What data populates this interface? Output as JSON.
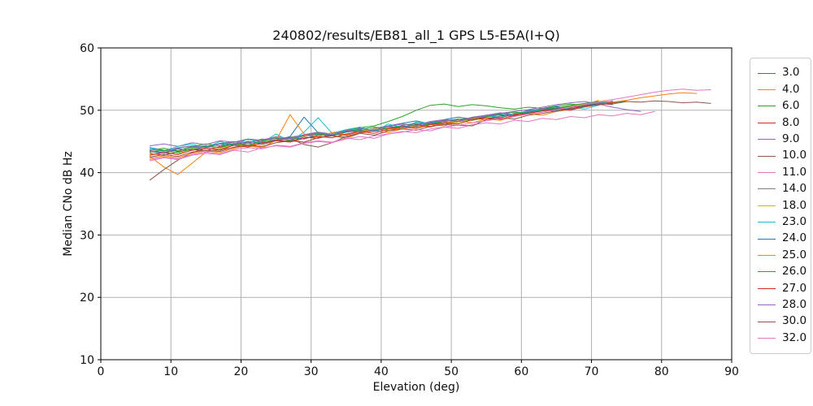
{
  "chart_data": {
    "type": "line",
    "title": "240802/results/EB81_all_1 GPS L5-E5A(I+Q)",
    "xlabel": "Elevation (deg)",
    "ylabel": "Median CNo dB Hz",
    "xlim": [
      0,
      90
    ],
    "ylim": [
      10,
      60
    ],
    "xticks": [
      0,
      10,
      20,
      30,
      40,
      50,
      60,
      70,
      80,
      90
    ],
    "yticks": [
      10,
      20,
      30,
      40,
      50,
      60
    ],
    "grid": true,
    "grid_color": "#b0b0b0",
    "spine_color": "#000000",
    "text_color": "#111111",
    "legend": {
      "position": "outside-right",
      "border_color": "#cccccc"
    },
    "series": [
      {
        "name": "3.0",
        "color": "#1f77b4",
        "x_start": 7,
        "x_step": 2,
        "values": [
          44.0,
          43.6,
          43.5,
          44.1,
          44.3,
          44.0,
          44.6,
          45.0,
          44.7,
          45.2,
          45.8,
          48.9,
          46.4,
          46.0,
          46.5,
          47.1,
          46.8,
          47.5,
          47.9,
          48.3,
          47.8,
          48.5,
          48.9,
          48.6,
          49.2,
          49.5,
          49.3,
          50.0,
          50.2,
          50.6,
          50.3,
          50.9,
          51.2,
          51.4
        ]
      },
      {
        "name": "4.0",
        "color": "#ff7f0e",
        "x_start": 7,
        "x_step": 2,
        "values": [
          42.6,
          40.9,
          39.7,
          41.5,
          43.3,
          43.7,
          44.0,
          44.4,
          44.1,
          44.8,
          45.2,
          44.9,
          45.6,
          45.9,
          45.5,
          46.3,
          46.7,
          46.4,
          47.0,
          47.4,
          47.7,
          47.5,
          48.2,
          48.4,
          48.8,
          48.5,
          49.2,
          49.6,
          49.9,
          50.1,
          50.5,
          50.8,
          51.6
        ]
      },
      {
        "name": "6.0",
        "color": "#2ca02c",
        "x_start": 7,
        "x_step": 2,
        "values": [
          43.6,
          43.9,
          43.5,
          44.2,
          44.6,
          44.3,
          44.9,
          45.3,
          45.0,
          45.6,
          45.4,
          46.0,
          46.4,
          46.1,
          46.8,
          47.2,
          47.5,
          48.2,
          49.0,
          50.0,
          50.8,
          51.0,
          50.6,
          50.9,
          50.7,
          50.4,
          50.2,
          50.5,
          50.3,
          50.7,
          51.0,
          50.8,
          51.2,
          51.0,
          51.4
        ]
      },
      {
        "name": "8.0",
        "color": "#d62728",
        "x_start": 7,
        "x_step": 2,
        "values": [
          43.1,
          42.8,
          43.4,
          43.7,
          43.5,
          44.2,
          44.5,
          44.3,
          44.9,
          45.2,
          45.0,
          45.7,
          45.5,
          46.2,
          46.0,
          46.6,
          47.0,
          46.7,
          47.3,
          47.7,
          47.4,
          48.0,
          48.3,
          48.7,
          48.5,
          49.1,
          49.4,
          49.7,
          50.0,
          49.8,
          50.4,
          50.7,
          51.0,
          51.3
        ]
      },
      {
        "name": "9.0",
        "color": "#9467bd",
        "x_start": 7,
        "x_step": 2,
        "values": [
          44.3,
          44.6,
          44.2,
          44.8,
          44.5,
          45.1,
          44.9,
          45.4,
          45.2,
          45.8,
          45.5,
          46.1,
          46.5,
          46.2,
          46.8,
          46.5,
          47.1,
          47.5,
          47.8,
          47.6,
          48.2,
          48.5,
          48.3,
          48.9,
          49.2,
          49.6,
          49.3,
          49.9,
          50.3,
          50.1,
          50.7,
          51.0,
          50.8,
          51.5
        ]
      },
      {
        "name": "10.0",
        "color": "#8c564b",
        "x_start": 7,
        "x_step": 2,
        "values": [
          38.8,
          40.5,
          42.0,
          43.2,
          43.9,
          43.6,
          44.4,
          44.7,
          44.5,
          45.1,
          45.5,
          44.5,
          44.1,
          44.8,
          45.8,
          46.4,
          46.9,
          47.2,
          47.0,
          47.6,
          48.0,
          47.7,
          48.3,
          48.6,
          49.0,
          48.8,
          49.4,
          49.7,
          50.1,
          50.4,
          50.2,
          50.8,
          51.1,
          50.9
        ]
      },
      {
        "name": "11.0",
        "color": "#e377c2",
        "x_start": 7,
        "x_step": 2,
        "values": [
          42.1,
          42.5,
          42.2,
          42.9,
          43.3,
          43.0,
          43.7,
          44.0,
          43.8,
          44.4,
          44.2,
          44.8,
          45.1,
          44.9,
          45.5,
          45.3,
          45.9,
          46.2,
          46.6,
          46.4,
          47.0,
          47.3,
          47.1,
          47.7,
          48.0,
          47.8,
          48.4,
          48.2,
          48.7,
          48.5,
          49.0,
          48.8,
          49.3,
          49.1,
          49.5,
          49.3,
          49.8
        ]
      },
      {
        "name": "14.0",
        "color": "#7f7f7f",
        "x_start": 7,
        "x_step": 2,
        "values": [
          43.7,
          43.4,
          44.0,
          44.3,
          44.1,
          44.7,
          45.0,
          44.8,
          45.4,
          45.1,
          45.7,
          46.0,
          45.8,
          46.4,
          46.7,
          46.5,
          47.1,
          47.4,
          47.2,
          47.8,
          48.1,
          47.9,
          48.5,
          48.8,
          49.2,
          48.9,
          49.5,
          49.8,
          50.2,
          50.0,
          50.6,
          50.9,
          51.2,
          51.0,
          51.6
        ]
      },
      {
        "name": "18.0",
        "color": "#bcbd22",
        "x_start": 7,
        "x_step": 2,
        "values": [
          42.9,
          43.3,
          43.0,
          43.8,
          44.1,
          43.9,
          44.5,
          44.2,
          44.9,
          45.3,
          45.6,
          45.4,
          46.0,
          46.3,
          46.1,
          46.7,
          47.0,
          46.8,
          47.4,
          47.1,
          47.8,
          48.2,
          48.0,
          48.6,
          48.9,
          49.3,
          49.1,
          49.7,
          50.0,
          50.4,
          50.7,
          51.0,
          51.4,
          51.7
        ]
      },
      {
        "name": "23.0",
        "color": "#17becf",
        "x_start": 7,
        "x_step": 2,
        "values": [
          43.9,
          43.5,
          44.2,
          44.6,
          44.0,
          45.0,
          44.4,
          45.4,
          44.8,
          46.2,
          45.0,
          46.5,
          48.8,
          46.3,
          46.9,
          47.3,
          46.6,
          47.8,
          47.2,
          48.1,
          47.9,
          48.4,
          48.2,
          48.8,
          49.1,
          48.9,
          49.5,
          49.8,
          50.1,
          49.9,
          50.5,
          50.2,
          50.8
        ]
      },
      {
        "name": "24.0",
        "color": "#1f77b4",
        "x_start": 7,
        "x_step": 2,
        "values": [
          43.4,
          43.1,
          43.8,
          43.6,
          44.2,
          44.6,
          44.4,
          45.0,
          44.7,
          45.3,
          45.6,
          45.4,
          46.1,
          45.9,
          46.5,
          46.8,
          46.6,
          47.2,
          47.5,
          47.3,
          47.9,
          48.2,
          48.6,
          48.4,
          49.0,
          49.3,
          49.1,
          49.7,
          50.0,
          50.3,
          50.1,
          50.7,
          51.0,
          51.2
        ]
      },
      {
        "name": "25.0",
        "color": "#ff7f0e",
        "x_start": 7,
        "x_step": 2,
        "values": [
          42.3,
          42.7,
          42.4,
          43.1,
          43.5,
          43.2,
          43.9,
          44.3,
          44.0,
          45.2,
          49.3,
          46.2,
          45.8,
          46.4,
          46.1,
          46.6,
          46.9,
          47.2,
          47.0,
          47.5,
          47.3,
          47.9,
          48.3,
          48.0,
          48.6,
          48.4,
          49.0,
          49.4,
          49.2,
          49.8,
          50.1,
          50.5,
          50.9,
          51.3,
          51.6,
          52.0,
          52.3,
          52.6,
          52.8,
          52.7
        ]
      },
      {
        "name": "26.0",
        "color": "#2ca02c",
        "x_start": 7,
        "x_step": 2,
        "values": [
          43.3,
          43.6,
          43.2,
          43.9,
          44.3,
          44.0,
          44.7,
          44.4,
          45.1,
          45.5,
          45.2,
          45.9,
          46.2,
          46.0,
          46.6,
          46.9,
          47.3,
          47.0,
          47.6,
          47.9,
          47.7,
          48.3,
          48.6,
          48.4,
          49.0,
          49.4,
          49.7,
          49.5,
          50.1,
          50.4,
          50.8,
          51.1,
          51.4
        ]
      },
      {
        "name": "27.0",
        "color": "#d62728",
        "x_start": 7,
        "x_step": 2,
        "values": [
          42.8,
          43.2,
          42.9,
          43.6,
          43.9,
          43.7,
          44.4,
          44.1,
          44.8,
          45.1,
          44.9,
          45.5,
          45.8,
          45.6,
          46.2,
          46.6,
          46.3,
          47.0,
          47.3,
          47.1,
          47.7,
          48.0,
          47.8,
          48.5,
          48.8,
          48.6,
          49.2,
          49.5,
          49.9,
          50.2,
          50.0,
          50.6,
          50.9,
          51.1
        ]
      },
      {
        "name": "28.0",
        "color": "#9467bd",
        "x_start": 7,
        "x_step": 2,
        "values": [
          43.5,
          43.2,
          43.9,
          44.3,
          44.0,
          44.6,
          44.9,
          44.7,
          45.3,
          45.6,
          45.4,
          46.0,
          46.3,
          46.1,
          46.7,
          47.0,
          46.8,
          47.4,
          47.8,
          47.5,
          48.1,
          48.4,
          48.2,
          48.8,
          49.1,
          49.5,
          49.8,
          50.1,
          50.5,
          50.9,
          51.2,
          51.4,
          51.0,
          50.5,
          50.1,
          49.8
        ]
      },
      {
        "name": "30.0",
        "color": "#8c564b",
        "x_start": 7,
        "x_step": 2,
        "values": [
          42.5,
          42.9,
          42.6,
          43.3,
          43.6,
          43.4,
          44.1,
          44.4,
          44.2,
          44.8,
          45.1,
          44.9,
          45.6,
          45.9,
          45.7,
          46.3,
          46.0,
          46.7,
          47.0,
          46.8,
          47.4,
          47.7,
          47.6,
          47.5,
          48.5,
          48.8,
          48.6,
          49.2,
          49.5,
          49.9,
          50.2,
          50.6,
          50.9,
          51.2,
          51.4,
          51.3,
          51.5,
          51.4,
          51.2,
          51.3,
          51.1
        ]
      },
      {
        "name": "32.0",
        "color": "#e377c2",
        "x_start": 7,
        "x_step": 2,
        "values": [
          41.9,
          42.4,
          42.1,
          42.8,
          43.1,
          42.9,
          43.6,
          43.3,
          44.0,
          44.3,
          44.1,
          44.7,
          45.0,
          44.8,
          45.4,
          45.8,
          45.5,
          46.2,
          46.5,
          46.9,
          46.7,
          47.3,
          47.6,
          48.0,
          48.3,
          48.7,
          49.0,
          49.4,
          49.7,
          50.1,
          50.5,
          50.9,
          51.3,
          51.7,
          52.1,
          52.5,
          52.9,
          53.2,
          53.4,
          53.2,
          53.3
        ]
      }
    ]
  }
}
